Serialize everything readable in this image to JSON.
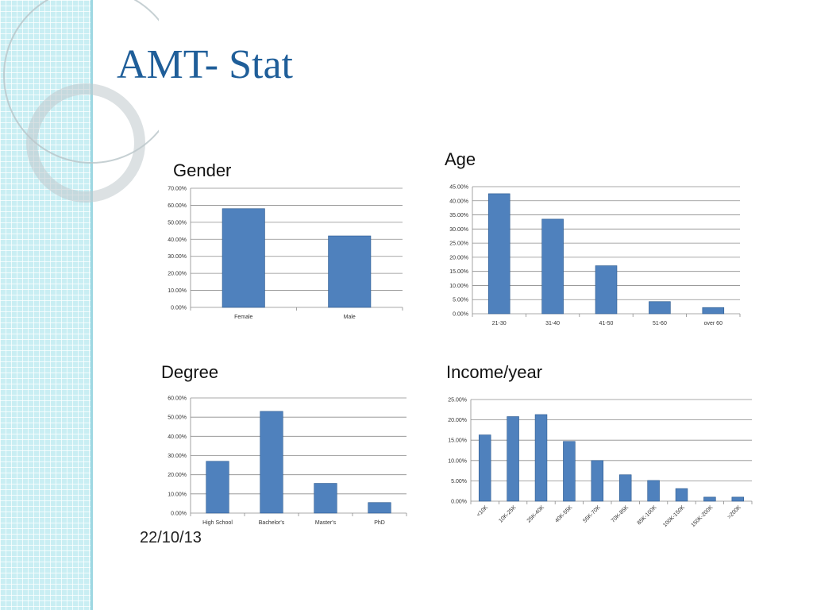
{
  "slide": {
    "title": "AMT- Stat",
    "date": "22/10/13"
  },
  "colors": {
    "bar": "#4f81bd",
    "bar_stroke": "#2c5a8f",
    "grid": "#8c8c8c",
    "title": "#1f5e99"
  },
  "chart_data": [
    {
      "type": "bar",
      "title": "Gender",
      "categories": [
        "Female",
        "Male"
      ],
      "values": [
        58,
        42
      ],
      "ylim": [
        0,
        70
      ],
      "ystep": 10,
      "ytick_format": "percent",
      "xlabel": "",
      "ylabel": "",
      "grid": true,
      "legend": "none"
    },
    {
      "type": "bar",
      "title": "Age",
      "categories": [
        "21-30",
        "31-40",
        "41-50",
        "51-60",
        "over 60"
      ],
      "values": [
        42.5,
        33.5,
        17,
        4.3,
        2.2
      ],
      "ylim": [
        0,
        45
      ],
      "ystep": 5,
      "ytick_format": "percent",
      "xlabel": "",
      "ylabel": "",
      "grid": true,
      "legend": "none"
    },
    {
      "type": "bar",
      "title": "Degree",
      "categories": [
        "High School",
        "Bachelor's",
        "Master's",
        "PhD"
      ],
      "values": [
        27,
        53,
        15.5,
        5.5
      ],
      "ylim": [
        0,
        60
      ],
      "ystep": 10,
      "ytick_format": "percent",
      "xlabel": "",
      "ylabel": "",
      "grid": true,
      "legend": "none"
    },
    {
      "type": "bar",
      "title": "Income/year",
      "categories": [
        "<10K",
        "10K-25K",
        "25K-40K",
        "40K-55K",
        "55K-70K",
        "70K-85K",
        "85K-100K",
        "100K-150K",
        "150K-200K",
        ">200K"
      ],
      "values": [
        16.3,
        20.8,
        21.3,
        14.7,
        10,
        6.5,
        5.1,
        3.1,
        1,
        1
      ],
      "ylim": [
        0,
        25
      ],
      "ystep": 5,
      "ytick_format": "percent",
      "xlabel": "",
      "ylabel": "",
      "grid": true,
      "legend": "none"
    }
  ]
}
